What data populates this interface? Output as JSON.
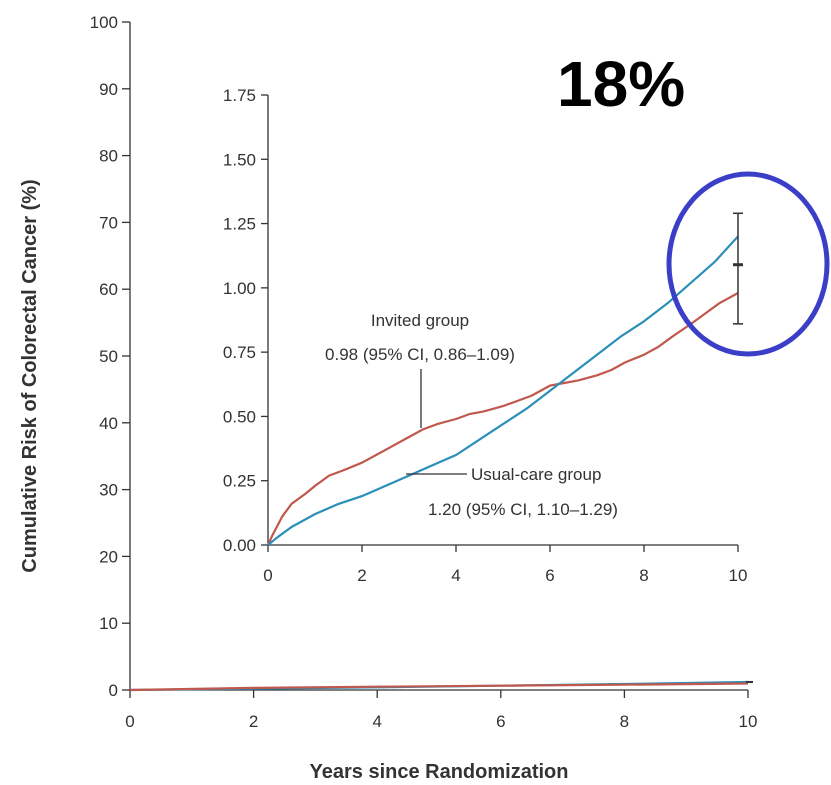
{
  "chart_data": [
    {
      "type": "line",
      "title": "",
      "xlabel": "Years since Randomization",
      "ylabel": "Cumulative Risk of Colorectal Cancer (%)",
      "xlim": [
        0,
        10
      ],
      "ylim": [
        0,
        100
      ],
      "x_ticks": [
        "0",
        "2",
        "4",
        "6",
        "8",
        "10"
      ],
      "y_ticks": [
        "0",
        "10",
        "20",
        "30",
        "40",
        "50",
        "60",
        "70",
        "80",
        "90",
        "100"
      ],
      "grid": false,
      "series": [
        {
          "color": "#2b8fb8",
          "x": [
            0,
            2,
            4,
            6,
            8,
            10
          ],
          "y": [
            0,
            0.2,
            0.4,
            0.65,
            0.9,
            1.2
          ]
        },
        {
          "color": "#c0584d",
          "x": [
            0,
            2,
            4,
            6,
            8,
            10
          ],
          "y": [
            0,
            0.32,
            0.5,
            0.64,
            0.8,
            0.98
          ]
        }
      ]
    },
    {
      "type": "line",
      "title": "",
      "xlabel": "",
      "ylabel": "",
      "xlim": [
        0,
        10
      ],
      "ylim": [
        0,
        1.75
      ],
      "x_ticks": [
        "0",
        "2",
        "4",
        "6",
        "8",
        "10"
      ],
      "y_ticks": [
        "0.00",
        "0.25",
        "0.50",
        "0.75",
        "1.00",
        "1.25",
        "1.50",
        "1.75"
      ],
      "grid": false,
      "series": [
        {
          "name": "Invited group",
          "color": "#c0584d",
          "x": [
            0,
            0.1,
            0.3,
            0.5,
            0.8,
            1.0,
            1.3,
            1.6,
            2.0,
            2.3,
            2.6,
            3.0,
            3.3,
            3.6,
            4.0,
            4.3,
            4.6,
            5.0,
            5.3,
            5.6,
            6.0,
            6.3,
            6.6,
            7.0,
            7.3,
            7.6,
            8.0,
            8.3,
            8.6,
            9.0,
            9.3,
            9.6,
            10.0
          ],
          "y": [
            0,
            0.04,
            0.11,
            0.16,
            0.2,
            0.23,
            0.27,
            0.29,
            0.32,
            0.35,
            0.38,
            0.42,
            0.45,
            0.47,
            0.49,
            0.51,
            0.52,
            0.54,
            0.56,
            0.58,
            0.62,
            0.63,
            0.64,
            0.66,
            0.68,
            0.71,
            0.74,
            0.77,
            0.81,
            0.86,
            0.9,
            0.94,
            0.98
          ]
        },
        {
          "name": "Usual-care group",
          "color": "#2b8fb8",
          "x": [
            0,
            0.2,
            0.5,
            1.0,
            1.5,
            2.0,
            2.5,
            3.0,
            3.5,
            4.0,
            4.5,
            5.0,
            5.5,
            6.0,
            6.5,
            7.0,
            7.5,
            8.0,
            8.5,
            9.0,
            9.5,
            10.0
          ],
          "y": [
            0,
            0.03,
            0.07,
            0.12,
            0.16,
            0.19,
            0.23,
            0.27,
            0.31,
            0.35,
            0.41,
            0.47,
            0.53,
            0.6,
            0.67,
            0.74,
            0.81,
            0.87,
            0.94,
            1.02,
            1.1,
            1.2
          ]
        }
      ],
      "error_bar": {
        "x": 10,
        "center": 1.09,
        "low": 0.86,
        "high": 1.29
      },
      "annotations": [
        {
          "series": "Invited group",
          "line1": "Invited group",
          "line2": "0.98 (95% CI, 0.86–1.09)"
        },
        {
          "series": "Usual-care group",
          "line1": "Usual-care group",
          "line2": "1.20 (95% CI, 1.10–1.29)"
        }
      ]
    }
  ],
  "overlay": {
    "highlight_text": "18%",
    "circle_color": "#3b3fc8"
  }
}
